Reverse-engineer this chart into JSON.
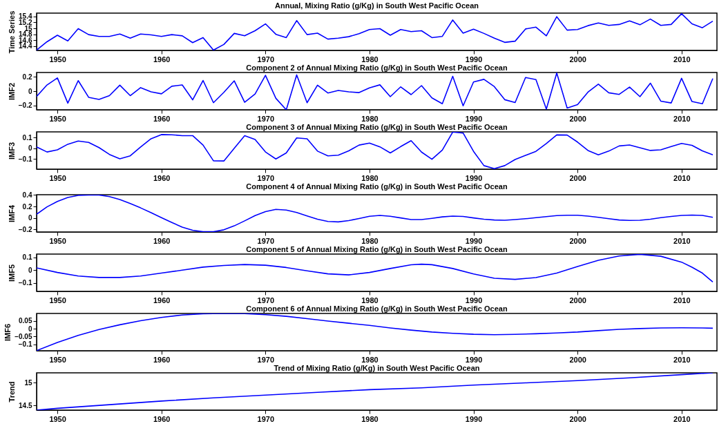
{
  "chart_data": [
    {
      "type": "line",
      "title": "Annual, Mixing Ratio (g/Kg) in South West Pacific Ocean",
      "ylabel": "Time Series",
      "grid": false,
      "xlim": [
        1948,
        2013.4
      ],
      "xticks": [
        1950,
        1960,
        1970,
        1980,
        1990,
        2000,
        2010
      ],
      "ylim": [
        14.26,
        15.51
      ],
      "yticks": [
        14.4,
        14.6,
        14.8,
        15,
        15.2,
        15.4
      ],
      "x": [
        1948,
        1949,
        1950,
        1951,
        1952,
        1953,
        1954,
        1955,
        1956,
        1957,
        1958,
        1959,
        1960,
        1961,
        1962,
        1963,
        1964,
        1965,
        1966,
        1967,
        1968,
        1969,
        1970,
        1971,
        1972,
        1973,
        1974,
        1975,
        1976,
        1977,
        1978,
        1979,
        1980,
        1981,
        1982,
        1983,
        1984,
        1985,
        1986,
        1987,
        1988,
        1989,
        1990,
        1991,
        1992,
        1993,
        1994,
        1995,
        1996,
        1997,
        1998,
        1999,
        2000,
        2001,
        2002,
        2003,
        2004,
        2005,
        2006,
        2007,
        2008,
        2009,
        2010,
        2011,
        2012,
        2013
      ],
      "series": [
        {
          "color": "#0000ff",
          "values": [
            14.27,
            14.55,
            14.77,
            14.58,
            14.99,
            14.79,
            14.73,
            14.73,
            14.81,
            14.67,
            14.81,
            14.78,
            14.73,
            14.79,
            14.75,
            14.52,
            14.69,
            14.27,
            14.46,
            14.83,
            14.75,
            14.92,
            15.15,
            14.8,
            14.69,
            15.26,
            14.79,
            14.84,
            14.64,
            14.67,
            14.72,
            14.82,
            14.96,
            14.99,
            14.77,
            14.96,
            14.89,
            14.92,
            14.69,
            14.73,
            15.28,
            14.84,
            14.97,
            14.83,
            14.67,
            14.53,
            14.57,
            14.98,
            15.04,
            14.75,
            15.39,
            14.94,
            14.96,
            15.09,
            15.18,
            15.1,
            15.13,
            15.25,
            15.12,
            15.31,
            15.1,
            15.13,
            15.49,
            15.15,
            15.02,
            15.24
          ]
        }
      ]
    },
    {
      "type": "line",
      "title": "Component 2 of Annual Mixing Ratio (g/Kg) in South West Pacific Ocean",
      "ylabel": "IMF2",
      "grid": false,
      "xlim": [
        1948,
        2013.4
      ],
      "xticks": [
        1950,
        1960,
        1970,
        1980,
        1990,
        2000,
        2010
      ],
      "ylim": [
        -0.26,
        0.26
      ],
      "yticks": [
        -0.2,
        0,
        0.2
      ],
      "x": [
        1948,
        1949,
        1950,
        1951,
        1952,
        1953,
        1954,
        1955,
        1956,
        1957,
        1958,
        1959,
        1960,
        1961,
        1962,
        1963,
        1964,
        1965,
        1966,
        1967,
        1968,
        1969,
        1970,
        1971,
        1972,
        1973,
        1974,
        1975,
        1976,
        1977,
        1978,
        1979,
        1980,
        1981,
        1982,
        1983,
        1984,
        1985,
        1986,
        1987,
        1988,
        1989,
        1990,
        1991,
        1992,
        1993,
        1994,
        1995,
        1996,
        1997,
        1998,
        1999,
        2000,
        2001,
        2002,
        2003,
        2004,
        2005,
        2006,
        2007,
        2008,
        2009,
        2010,
        2011,
        2012,
        2013
      ],
      "series": [
        {
          "color": "#0000ff",
          "values": [
            -0.075,
            0.086,
            0.184,
            -0.167,
            0.147,
            -0.086,
            -0.115,
            -0.063,
            0.083,
            -0.063,
            0.049,
            -0.009,
            -0.037,
            0.069,
            0.086,
            -0.121,
            0.149,
            -0.161,
            -0.017,
            0.144,
            -0.155,
            -0.04,
            0.221,
            -0.1,
            -0.26,
            0.227,
            -0.161,
            0.083,
            -0.026,
            0.009,
            -0.01,
            -0.02,
            0.045,
            0.088,
            -0.077,
            0.06,
            -0.048,
            0.077,
            -0.094,
            -0.176,
            0.207,
            -0.205,
            0.128,
            0.165,
            0.063,
            -0.119,
            -0.159,
            0.19,
            0.162,
            -0.25,
            0.253,
            -0.236,
            -0.188,
            -0.014,
            0.097,
            -0.023,
            -0.045,
            0.057,
            -0.077,
            0.111,
            -0.139,
            -0.165,
            0.179,
            -0.145,
            -0.176,
            0.176
          ]
        }
      ]
    },
    {
      "type": "line",
      "title": "Component 3 of Annual Mixing Ratio (g/Kg) in South West Pacific Ocean",
      "ylabel": "IMF3",
      "grid": false,
      "xlim": [
        1948,
        2013.4
      ],
      "xticks": [
        1950,
        1960,
        1970,
        1980,
        1990,
        2000,
        2010
      ],
      "ylim": [
        -0.195,
        0.152
      ],
      "yticks": [
        -0.1,
        0,
        0.1
      ],
      "x": [
        1948,
        1949,
        1950,
        1951,
        1952,
        1953,
        1954,
        1955,
        1956,
        1957,
        1958,
        1959,
        1960,
        1961,
        1962,
        1963,
        1964,
        1965,
        1966,
        1967,
        1968,
        1969,
        1970,
        1971,
        1972,
        1973,
        1974,
        1975,
        1976,
        1977,
        1978,
        1979,
        1980,
        1981,
        1982,
        1983,
        1984,
        1985,
        1986,
        1987,
        1988,
        1989,
        1990,
        1991,
        1992,
        1993,
        1994,
        1995,
        1996,
        1997,
        1998,
        1999,
        2000,
        2001,
        2002,
        2003,
        2004,
        2005,
        2006,
        2007,
        2008,
        2009,
        2010,
        2011,
        2012,
        2013
      ],
      "series": [
        {
          "color": "#0000ff",
          "values": [
            0.012,
            -0.035,
            -0.015,
            0.037,
            0.067,
            0.054,
            0.006,
            -0.058,
            -0.098,
            -0.071,
            0.012,
            0.088,
            0.127,
            0.125,
            0.117,
            0.117,
            0.029,
            -0.117,
            -0.119,
            0,
            0.117,
            0.081,
            -0.035,
            -0.1,
            -0.044,
            0.096,
            0.088,
            -0.027,
            -0.071,
            -0.065,
            -0.025,
            0.029,
            0.048,
            0.013,
            -0.044,
            0.015,
            0.07,
            -0.036,
            -0.103,
            -0.017,
            0.15,
            0.141,
            -0.029,
            -0.162,
            -0.19,
            -0.162,
            -0.105,
            -0.067,
            -0.029,
            0.044,
            0.124,
            0.122,
            0.057,
            -0.021,
            -0.061,
            -0.027,
            0.021,
            0.03,
            0.004,
            -0.021,
            -0.015,
            0.015,
            0.044,
            0.027,
            -0.025,
            -0.061
          ]
        }
      ]
    },
    {
      "type": "line",
      "title": "Component 4 of Annual Mixing Ratio (g/Kg) in South West Pacific Ocean",
      "ylabel": "IMF4",
      "grid": false,
      "xlim": [
        1948,
        2013.4
      ],
      "xticks": [
        1950,
        1960,
        1970,
        1980,
        1990,
        2000,
        2010
      ],
      "ylim": [
        -0.245,
        0.405
      ],
      "yticks": [
        -0.2,
        0,
        0.2,
        0.4
      ],
      "x": [
        1948,
        1949,
        1950,
        1951,
        1952,
        1953,
        1954,
        1955,
        1956,
        1957,
        1958,
        1959,
        1960,
        1961,
        1962,
        1963,
        1964,
        1965,
        1966,
        1967,
        1968,
        1969,
        1970,
        1971,
        1972,
        1973,
        1974,
        1975,
        1976,
        1977,
        1978,
        1979,
        1980,
        1981,
        1982,
        1983,
        1984,
        1985,
        1986,
        1987,
        1988,
        1989,
        1990,
        1991,
        1992,
        1993,
        1994,
        1995,
        1996,
        1997,
        1998,
        1999,
        2000,
        2001,
        2002,
        2003,
        2004,
        2005,
        2006,
        2007,
        2008,
        2009,
        2010,
        2011,
        2012,
        2013
      ],
      "series": [
        {
          "color": "#0000ff",
          "values": [
            0.065,
            0.193,
            0.287,
            0.356,
            0.393,
            0.4,
            0.4,
            0.371,
            0.32,
            0.251,
            0.175,
            0.091,
            0.004,
            -0.08,
            -0.16,
            -0.215,
            -0.24,
            -0.24,
            -0.207,
            -0.138,
            -0.051,
            0.04,
            0.109,
            0.149,
            0.138,
            0.095,
            0.036,
            -0.022,
            -0.062,
            -0.069,
            -0.047,
            -0.01,
            0.029,
            0.043,
            0.029,
            0,
            -0.029,
            -0.029,
            -0.007,
            0.018,
            0.032,
            0.025,
            0,
            -0.022,
            -0.036,
            -0.04,
            -0.029,
            -0.014,
            0.004,
            0.022,
            0.04,
            0.047,
            0.047,
            0.032,
            0.011,
            -0.014,
            -0.036,
            -0.043,
            -0.04,
            -0.022,
            0.004,
            0.025,
            0.043,
            0.05,
            0.043,
            0.011
          ]
        }
      ]
    },
    {
      "type": "line",
      "title": "Component 5 of Annual Mixing Ratio (g/Kg) in South West Pacific Ocean",
      "ylabel": "IMF5",
      "grid": false,
      "xlim": [
        1948,
        2013.4
      ],
      "xticks": [
        1950,
        1960,
        1970,
        1980,
        1990,
        2000,
        2010
      ],
      "ylim": [
        -0.166,
        0.126
      ],
      "yticks": [
        -0.1,
        0,
        0.1
      ],
      "x": [
        1948,
        1950,
        1952,
        1954,
        1956,
        1958,
        1960,
        1962,
        1964,
        1966,
        1968,
        1970,
        1972,
        1974,
        1976,
        1978,
        1980,
        1982,
        1984,
        1985,
        1986,
        1988,
        1990,
        1992,
        1994,
        1996,
        1998,
        2000,
        2002,
        2004,
        2006,
        2008,
        2010,
        2011,
        2012,
        2013
      ],
      "series": [
        {
          "color": "#0000ff",
          "values": [
            0.018,
            -0.018,
            -0.046,
            -0.057,
            -0.057,
            -0.046,
            -0.023,
            0,
            0.024,
            0.037,
            0.044,
            0.039,
            0.021,
            -0.005,
            -0.029,
            -0.037,
            -0.018,
            0.013,
            0.042,
            0.047,
            0.043,
            0.013,
            -0.029,
            -0.063,
            -0.072,
            -0.058,
            -0.023,
            0.029,
            0.077,
            0.111,
            0.124,
            0.109,
            0.063,
            0.023,
            -0.023,
            -0.092
          ]
        }
      ]
    },
    {
      "type": "line",
      "title": "Component 6 of Annual Mixing Ratio (g/Kg) in South West Pacific Ocean",
      "ylabel": "IMF6",
      "grid": false,
      "xlim": [
        1948,
        2013.4
      ],
      "xticks": [
        1950,
        1960,
        1970,
        1980,
        1990,
        2000,
        2010
      ],
      "ylim": [
        -0.14,
        0.097
      ],
      "yticks": [
        -0.1,
        -0.05,
        0,
        0.05
      ],
      "x": [
        1948,
        1950,
        1952,
        1954,
        1956,
        1958,
        1960,
        1962,
        1964,
        1966,
        1968,
        1970,
        1972,
        1974,
        1976,
        1978,
        1980,
        1982,
        1984,
        1986,
        1988,
        1990,
        1992,
        1994,
        1996,
        1998,
        2000,
        2002,
        2004,
        2006,
        2008,
        2010,
        2012,
        2013
      ],
      "series": [
        {
          "color": "#0000ff",
          "values": [
            -0.139,
            -0.087,
            -0.042,
            -0.005,
            0.025,
            0.051,
            0.072,
            0.087,
            0.095,
            0.097,
            0.096,
            0.089,
            0.079,
            0.064,
            0.049,
            0.035,
            0.021,
            0.005,
            -0.009,
            -0.021,
            -0.029,
            -0.035,
            -0.038,
            -0.036,
            -0.032,
            -0.027,
            -0.021,
            -0.012,
            -0.004,
            0.001,
            0.005,
            0.006,
            0.005,
            0.003
          ]
        }
      ]
    },
    {
      "type": "line",
      "title": "Trend of Mixing Ratio (g/Kg) in South West Pacific Ocean",
      "ylabel": "Trend",
      "grid": false,
      "xlim": [
        1948,
        2013.4
      ],
      "xticks": [
        1950,
        1960,
        1970,
        1980,
        1990,
        2000,
        2010
      ],
      "ylim": [
        14.4,
        15.22
      ],
      "yticks": [
        14.5,
        15
      ],
      "x": [
        1948,
        1950,
        1955,
        1960,
        1965,
        1970,
        1975,
        1980,
        1985,
        1990,
        1995,
        2000,
        2005,
        2010,
        2013
      ],
      "series": [
        {
          "color": "#0000ff",
          "values": [
            14.4,
            14.44,
            14.52,
            14.6,
            14.67,
            14.73,
            14.79,
            14.85,
            14.89,
            14.95,
            15.0,
            15.05,
            15.11,
            15.18,
            15.22
          ]
        }
      ]
    }
  ]
}
